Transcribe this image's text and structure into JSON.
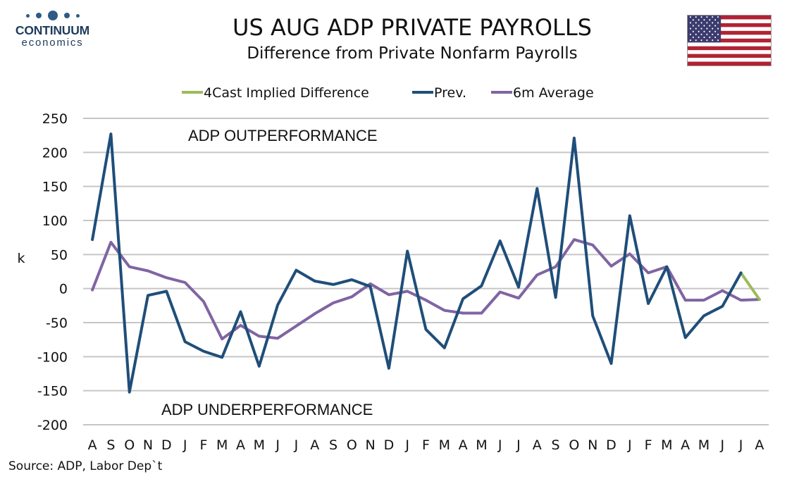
{
  "logo": {
    "name": "CONTINUUM",
    "sub": "economics"
  },
  "flag_icon": "us-flag-icon",
  "chart_data": {
    "type": "line",
    "title": "US AUG ADP PRIVATE PAYROLLS",
    "subtitle": "Difference from Private Nonfarm Payrolls",
    "ylabel": "k",
    "ylim": [
      -200,
      250
    ],
    "yticks": [
      250,
      200,
      150,
      100,
      50,
      0,
      -50,
      -100,
      -150,
      -200
    ],
    "categories": [
      "A",
      "S",
      "O",
      "N",
      "D",
      "J",
      "F",
      "M",
      "A",
      "M",
      "J",
      "J",
      "A",
      "S",
      "O",
      "N",
      "D",
      "J",
      "F",
      "M",
      "A",
      "M",
      "J",
      "J",
      "A",
      "S",
      "O",
      "N",
      "D",
      "J",
      "F",
      "M",
      "A",
      "M",
      "J",
      "J",
      "A"
    ],
    "grid": true,
    "legend_position": "top",
    "series": [
      {
        "name": "4Cast Implied Difference",
        "color": "#9bbb59",
        "values": [
          null,
          null,
          null,
          null,
          null,
          null,
          null,
          null,
          null,
          null,
          null,
          null,
          null,
          null,
          null,
          null,
          null,
          null,
          null,
          null,
          null,
          null,
          null,
          null,
          null,
          null,
          null,
          null,
          null,
          null,
          null,
          null,
          null,
          null,
          null,
          23,
          -16
        ]
      },
      {
        "name": "Prev.",
        "color": "#1f4e79",
        "values": [
          72,
          227,
          -152,
          -10,
          -4,
          -78,
          -92,
          -101,
          -34,
          -114,
          -24,
          27,
          11,
          6,
          13,
          3,
          -117,
          55,
          -60,
          -87,
          -15,
          4,
          70,
          2,
          147,
          -13,
          221,
          -40,
          -110,
          107,
          -22,
          32,
          -72,
          -40,
          -26,
          23,
          null
        ]
      },
      {
        "name": "6m Average",
        "color": "#8064a2",
        "values": [
          -2,
          68,
          32,
          26,
          16,
          9,
          -19,
          -74,
          -54,
          -70,
          -73,
          -55,
          -37,
          -21,
          -12,
          7,
          -9,
          -4,
          -17,
          -32,
          -36,
          -36,
          -5,
          -14,
          20,
          32,
          72,
          64,
          33,
          51,
          23,
          32,
          -17,
          -17,
          -3,
          -17,
          -16
        ]
      }
    ],
    "annotations": [
      {
        "text": "ADP OUTPERFORMANCE"
      },
      {
        "text": "ADP UNDERPERFORMANCE"
      }
    ],
    "source": "Source: ADP, Labor Dep`t"
  }
}
